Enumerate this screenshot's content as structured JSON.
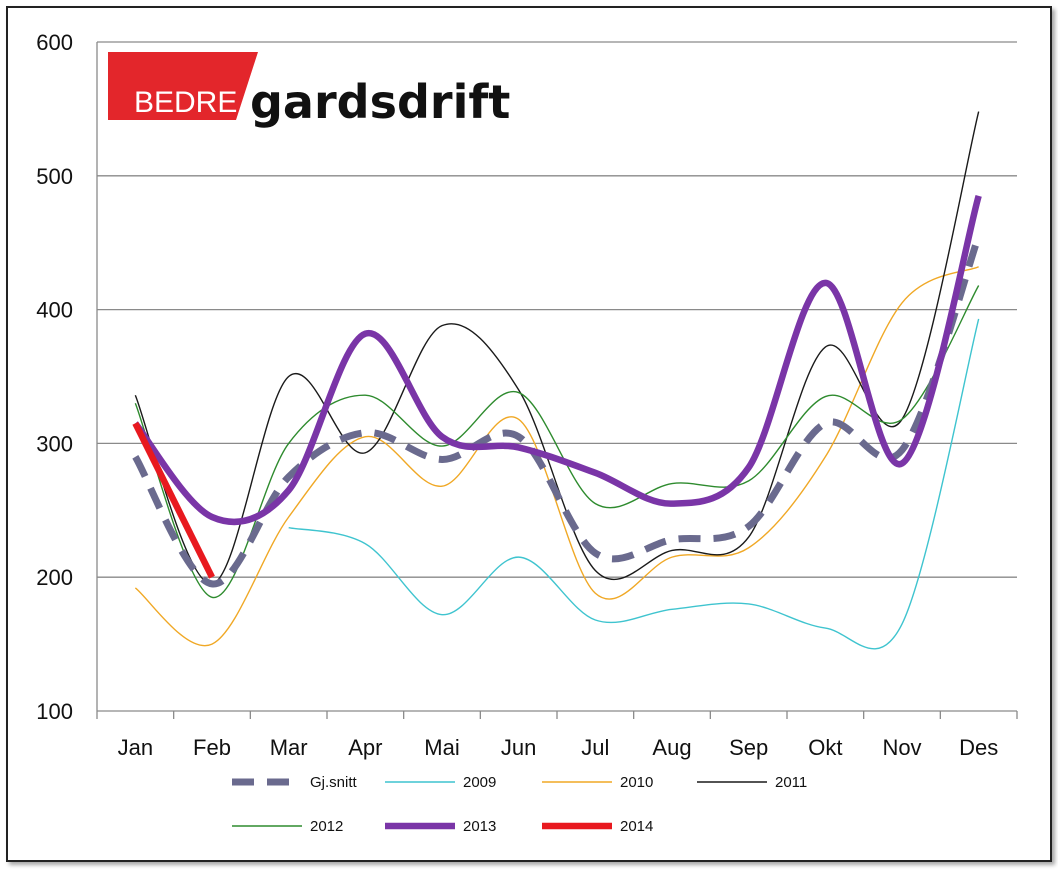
{
  "logo": {
    "part1": "BEDRE",
    "part2": "gardsdrift",
    "red": "#e3262b"
  },
  "chart_data": {
    "type": "line",
    "categories": [
      "Jan",
      "Feb",
      "Mar",
      "Apr",
      "Mai",
      "Jun",
      "Jul",
      "Aug",
      "Sep",
      "Okt",
      "Nov",
      "Des"
    ],
    "ylim": [
      100,
      600
    ],
    "yticks": [
      100,
      200,
      300,
      400,
      500,
      600
    ],
    "grid": true,
    "legend_position": "bottom",
    "series": [
      {
        "name": "Gj.snitt",
        "color": "#6a6a8e",
        "style": "dashed",
        "values": [
          290,
          195,
          275,
          308,
          288,
          305,
          218,
          228,
          238,
          315,
          295,
          455
        ]
      },
      {
        "name": "2009",
        "color": "#3fc4cf",
        "style": "thin",
        "values": [
          null,
          null,
          237,
          225,
          172,
          215,
          168,
          176,
          180,
          162,
          165,
          393
        ]
      },
      {
        "name": "2010",
        "color": "#f0a825",
        "style": "thin",
        "values": [
          192,
          150,
          245,
          305,
          268,
          318,
          188,
          215,
          222,
          290,
          405,
          432
        ]
      },
      {
        "name": "2011",
        "color": "#1a1a1a",
        "style": "thin",
        "values": [
          336,
          195,
          350,
          293,
          388,
          340,
          205,
          220,
          230,
          372,
          318,
          548
        ]
      },
      {
        "name": "2012",
        "color": "#2e8b2e",
        "style": "thin",
        "values": [
          330,
          185,
          300,
          336,
          298,
          338,
          255,
          270,
          272,
          335,
          318,
          418
        ]
      },
      {
        "name": "2013",
        "color": "#7a35a7",
        "style": "thick",
        "values": [
          315,
          245,
          265,
          382,
          305,
          297,
          278,
          255,
          282,
          420,
          285,
          485
        ]
      },
      {
        "name": "2014",
        "color": "#e8191f",
        "style": "thick",
        "values": [
          315,
          200,
          null,
          null,
          null,
          null,
          null,
          null,
          null,
          null,
          null,
          null
        ]
      }
    ]
  }
}
